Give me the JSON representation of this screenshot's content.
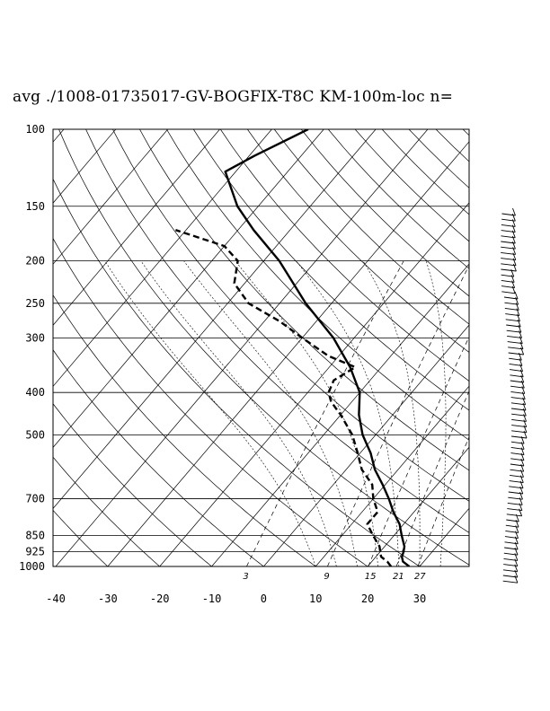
{
  "title": "avg ./1008-01735017-GV-BOGFIX-T8C KM-100m-loc n=",
  "chart_data": {
    "type": "skew-t log-p sounding",
    "pressure_levels": [
      100,
      150,
      200,
      250,
      300,
      400,
      500,
      700,
      850,
      925,
      1000
    ],
    "pressure_labels": [
      "100",
      "150",
      "200",
      "250",
      "300",
      "400",
      "500",
      "700",
      "850",
      "925",
      "1000"
    ],
    "temperature_ticks": [
      -40,
      -30,
      -20,
      -10,
      0,
      10,
      20,
      30
    ],
    "temperature_labels": [
      "-40",
      "-30",
      "-20",
      "-10",
      "0",
      "10",
      "20",
      "30"
    ],
    "mixing_ratio_lines": [
      3,
      9,
      15,
      21,
      27
    ],
    "mixing_ratio_labels": [
      "3",
      "9",
      "15",
      "21",
      "27"
    ],
    "ylim": [
      1000,
      100
    ],
    "xlim_at_1000hPa": [
      -40,
      40
    ],
    "grid": true,
    "series": [
      {
        "line_style": "solid",
        "points": [
          {
            "p": 1000,
            "t": 28
          },
          {
            "p": 975,
            "t": 26
          },
          {
            "p": 950,
            "t": 25
          },
          {
            "p": 925,
            "t": 24.5
          },
          {
            "p": 900,
            "t": 23.8
          },
          {
            "p": 850,
            "t": 21.5
          },
          {
            "p": 800,
            "t": 19.2
          },
          {
            "p": 750,
            "t": 16
          },
          {
            "p": 700,
            "t": 13
          },
          {
            "p": 650,
            "t": 9.5
          },
          {
            "p": 600,
            "t": 5.5
          },
          {
            "p": 550,
            "t": 2
          },
          {
            "p": 500,
            "t": -2.5
          },
          {
            "p": 450,
            "t": -6.5
          },
          {
            "p": 400,
            "t": -10
          },
          {
            "p": 350,
            "t": -16
          },
          {
            "p": 300,
            "t": -24
          },
          {
            "p": 250,
            "t": -35
          },
          {
            "p": 200,
            "t": -47
          },
          {
            "p": 170,
            "t": -57
          },
          {
            "p": 150,
            "t": -64
          },
          {
            "p": 125,
            "t": -72
          },
          {
            "p": 115,
            "t": -69
          },
          {
            "p": 100,
            "t": -63
          }
        ]
      },
      {
        "line_style": "dashed",
        "points": [
          {
            "p": 1000,
            "t": 24.5
          },
          {
            "p": 975,
            "t": 23
          },
          {
            "p": 950,
            "t": 21
          },
          {
            "p": 925,
            "t": 20
          },
          {
            "p": 900,
            "t": 19
          },
          {
            "p": 850,
            "t": 16
          },
          {
            "p": 800,
            "t": 13
          },
          {
            "p": 750,
            "t": 13
          },
          {
            "p": 700,
            "t": 10
          },
          {
            "p": 650,
            "t": 7.5
          },
          {
            "p": 600,
            "t": 3
          },
          {
            "p": 550,
            "t": -0.5
          },
          {
            "p": 500,
            "t": -4.5
          },
          {
            "p": 450,
            "t": -10
          },
          {
            "p": 420,
            "t": -14
          },
          {
            "p": 400,
            "t": -16
          },
          {
            "p": 375,
            "t": -17
          },
          {
            "p": 350,
            "t": -15
          },
          {
            "p": 330,
            "t": -22
          },
          {
            "p": 300,
            "t": -30
          },
          {
            "p": 275,
            "t": -37
          },
          {
            "p": 250,
            "t": -46
          },
          {
            "p": 225,
            "t": -52
          },
          {
            "p": 200,
            "t": -55
          },
          {
            "p": 185,
            "t": -60
          },
          {
            "p": 170,
            "t": -72
          }
        ]
      }
    ]
  }
}
